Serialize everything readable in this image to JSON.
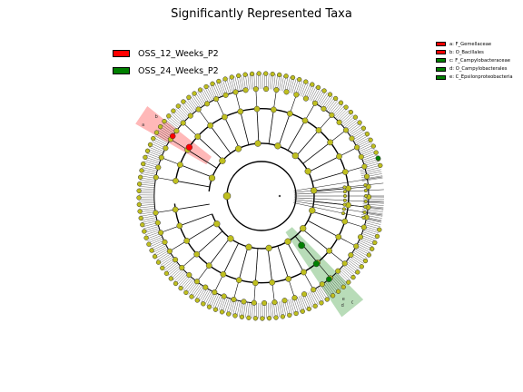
{
  "title": "Significantly Represented Taxa",
  "legend": [
    {
      "label": "OSS_12_Weeks_P2",
      "color": "#ff0000"
    },
    {
      "label": "OSS_24_Weeks_P2",
      "color": "#008000"
    }
  ],
  "clades": [
    {
      "letter": "a",
      "label": "a: F_Gemellaceae",
      "color": "#ff0000",
      "group": "OSS_12_Weeks_P2"
    },
    {
      "letter": "b",
      "label": "b: O_Bacillales",
      "color": "#ff0000",
      "group": "OSS_12_Weeks_P2"
    },
    {
      "letter": "c",
      "label": "c: F_Campylobacteraceae",
      "color": "#008000",
      "group": "OSS_24_Weeks_P2"
    },
    {
      "letter": "d",
      "label": "d: O_Campylobacterales",
      "color": "#008000",
      "group": "OSS_24_Weeks_P2"
    },
    {
      "letter": "e",
      "label": "e: C_Epsilonproteobacteria",
      "color": "#008000",
      "group": "OSS_24_Weeks_P2"
    }
  ],
  "colors": {
    "node_fill": "#bfbf1f",
    "node_stroke": "#333333",
    "red_highlight": "#ff0000",
    "green_highlight": "#008000"
  }
}
